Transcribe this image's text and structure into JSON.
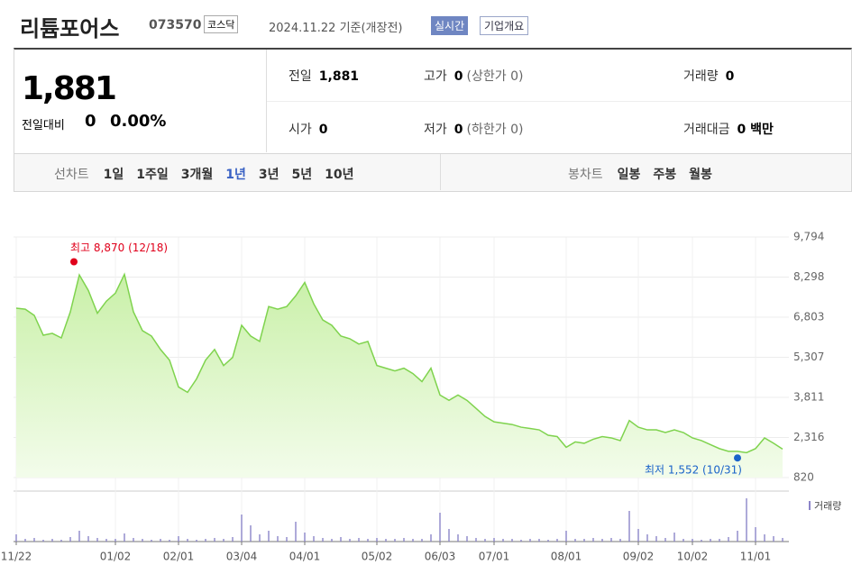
{
  "header": {
    "title": "리튬포어스",
    "code": "073570",
    "market": "코스닥",
    "date": "2024.11.22 기준(개장전)",
    "realtime": "실시간",
    "company": "기업개요"
  },
  "summary": {
    "price": "1,881",
    "change_label": "전일대비",
    "change": "0",
    "rate": "0.00%"
  },
  "info": [
    [
      "전일",
      "1,881"
    ],
    [
      "고가",
      "0",
      "(상한가 0)"
    ],
    [
      "거래량",
      "0"
    ],
    [
      "시가",
      "0"
    ],
    [
      "저가",
      "0",
      "(하한가 0)"
    ],
    [
      "거래대금",
      "0 백만"
    ]
  ],
  "tabs": {
    "line_label": "선차트",
    "line": [
      "1일",
      "1주일",
      "3개월",
      "1년",
      "3년",
      "5년",
      "10년"
    ],
    "candle_label": "봉차트",
    "candle": [
      "일봉",
      "주봉",
      "월봉"
    ]
  },
  "chart_data": [
    {
      "type": "line",
      "color": "#7fd34e",
      "categories": [
        "11/22",
        null,
        null,
        null,
        null,
        null,
        null,
        null,
        null,
        null,
        null,
        "01/02",
        null,
        null,
        null,
        null,
        null,
        null,
        "02/01",
        null,
        null,
        null,
        null,
        null,
        null,
        "03/04",
        null,
        null,
        null,
        null,
        null,
        null,
        "04/01",
        null,
        null,
        null,
        null,
        null,
        null,
        null,
        "05/02",
        null,
        null,
        null,
        null,
        null,
        null,
        "06/03",
        null,
        null,
        null,
        null,
        null,
        "07/01",
        null,
        null,
        null,
        null,
        null,
        null,
        null,
        "08/01",
        null,
        null,
        null,
        null,
        null,
        null,
        null,
        "09/02",
        null,
        null,
        null,
        null,
        null,
        "10/02",
        null,
        null,
        null,
        null,
        null,
        null,
        "11/01",
        null,
        null,
        null
      ],
      "values": [
        7138,
        7100,
        6870,
        6130,
        6200,
        6030,
        7000,
        8380,
        7800,
        6950,
        7400,
        7700,
        8400,
        7000,
        6300,
        6100,
        5600,
        5200,
        4200,
        4000,
        4500,
        5200,
        5600,
        5000,
        5300,
        6500,
        6100,
        5900,
        7200,
        7100,
        7200,
        7600,
        8100,
        7300,
        6700,
        6500,
        6100,
        6000,
        5800,
        5900,
        5000,
        4900,
        4800,
        4900,
        4700,
        4400,
        4900,
        3900,
        3700,
        3900,
        3700,
        3400,
        3100,
        2900,
        2850,
        2800,
        2700,
        2650,
        2600,
        2400,
        2350,
        1950,
        2150,
        2100,
        2250,
        2350,
        2300,
        2200,
        2950,
        2700,
        2600,
        2600,
        2500,
        2600,
        2500,
        2300,
        2200,
        2050,
        1900,
        1800,
        1800,
        1750,
        1900,
        2300,
        2100,
        1881
      ],
      "ylim": [
        820,
        9794
      ],
      "yticks": [
        820,
        {
          "value": 2316,
          "label": "2,316"
        },
        {
          "value": 3811,
          "label": "3,811"
        },
        {
          "value": 5307,
          "label": "5,307"
        },
        {
          "value": 6803,
          "label": "6,803"
        },
        {
          "value": 8298,
          "label": "8,298"
        },
        {
          "value": 9794,
          "label": "9,794"
        }
      ],
      "annotations": [
        {
          "text": "최고 8,870 (12/18)",
          "value": 8870,
          "color": "#e0001b"
        },
        {
          "text": "최저 1,552 (10/31)",
          "value": 1552,
          "color": "#1a63c9"
        }
      ]
    },
    {
      "type": "bar",
      "series": [
        {
          "name": "거래량",
          "color": "#8c85c9",
          "values": [
            8,
            3,
            4,
            2,
            3,
            2,
            5,
            12,
            6,
            4,
            3,
            3,
            9,
            4,
            3,
            2,
            3,
            2,
            6,
            3,
            2,
            3,
            4,
            3,
            5,
            30,
            18,
            8,
            12,
            6,
            5,
            22,
            10,
            6,
            4,
            3,
            5,
            3,
            4,
            3,
            4,
            3,
            3,
            4,
            3,
            3,
            8,
            32,
            14,
            8,
            6,
            4,
            3,
            4,
            3,
            3,
            2,
            3,
            3,
            2,
            3,
            12,
            3,
            3,
            4,
            3,
            4,
            3,
            34,
            14,
            8,
            6,
            4,
            10,
            3,
            3,
            2,
            3,
            3,
            5,
            12,
            48,
            16,
            8,
            6,
            4
          ]
        }
      ]
    }
  ]
}
